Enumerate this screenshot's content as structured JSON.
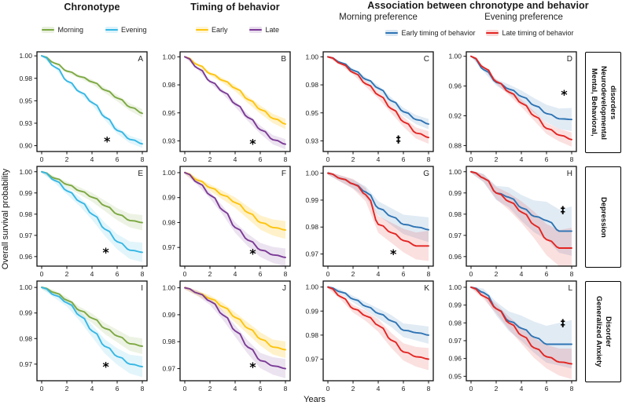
{
  "header": {
    "col1": "Chronotype",
    "col2": "Timing of behavior",
    "col34": "Association between chronotype  and behavior",
    "sub_col3": "Morning preference",
    "sub_col4": "Evening preference"
  },
  "ylabel": "Overall survival probability",
  "xlabel": "Years",
  "legends": {
    "chronotype": [
      {
        "label": "Morning",
        "color": "#7ca842"
      },
      {
        "label": "Evening",
        "color": "#35b7e5"
      }
    ],
    "timing": [
      {
        "label": "Early",
        "color": "#fdc40f"
      },
      {
        "label": "Late",
        "color": "#7b3a96"
      }
    ],
    "association": [
      {
        "label": "Early timing of behavior",
        "color": "#2e74b4"
      },
      {
        "label": "Late timing of behavior",
        "color": "#e32522"
      }
    ]
  },
  "row_labels": [
    {
      "lines": [
        "Mental, Behavioral,",
        "Neurodevelopmental",
        "disorders"
      ]
    },
    {
      "lines": [
        "Depression"
      ]
    },
    {
      "lines": [
        "Generalized Anxiety",
        "Disorder"
      ]
    }
  ],
  "chart_data": {
    "type": "line",
    "subtype": "kaplan-meier-survival-grid",
    "xlabel": "Years",
    "ylabel": "Overall survival probability",
    "x": [
      0,
      1,
      2,
      3,
      4,
      5,
      6,
      7,
      8
    ],
    "x_ticks": [
      0,
      2,
      4,
      6,
      8
    ],
    "panels": [
      {
        "id": "A",
        "row": 0,
        "col": 0,
        "ylim": [
          0.8935,
          1.0045
        ],
        "yticks": [
          {
            "v": 1.0,
            "label": "1.00"
          },
          {
            "v": 0.975,
            "label": "0.98"
          },
          {
            "v": 0.95,
            "label": "0.95"
          },
          {
            "v": 0.925,
            "label": "0.93"
          },
          {
            "v": 0.9,
            "label": "0.90"
          }
        ],
        "series": [
          {
            "name": "Morning",
            "color": "#7ca842",
            "band": 0.004,
            "values": [
              1.0,
              0.992,
              0.983,
              0.977,
              0.971,
              0.962,
              0.953,
              0.943,
              0.936
            ]
          },
          {
            "name": "Evening",
            "color": "#35b7e5",
            "band": 0.004,
            "values": [
              1.0,
              0.988,
              0.972,
              0.96,
              0.948,
              0.932,
              0.917,
              0.907,
              0.902
            ]
          }
        ],
        "symbol": {
          "glyph": "*",
          "x": 5.2,
          "y": 0.906
        }
      },
      {
        "id": "B",
        "row": 0,
        "col": 1,
        "ylim": [
          0.9155,
          1.0045
        ],
        "yticks": [
          {
            "v": 1.0,
            "label": "1.00"
          },
          {
            "v": 0.975,
            "label": "0.98"
          },
          {
            "v": 0.95,
            "label": "0.95"
          },
          {
            "v": 0.925,
            "label": "0.93"
          }
        ],
        "series": [
          {
            "name": "Early",
            "color": "#fdc40f",
            "band": 0.004,
            "values": [
              1.0,
              0.993,
              0.985,
              0.979,
              0.972,
              0.962,
              0.953,
              0.945,
              0.94
            ]
          },
          {
            "name": "Late",
            "color": "#7b3a96",
            "band": 0.004,
            "values": [
              1.0,
              0.99,
              0.978,
              0.969,
              0.958,
              0.946,
              0.935,
              0.926,
              0.922
            ]
          }
        ],
        "symbol": {
          "glyph": "*",
          "x": 5.4,
          "y": 0.9235
        }
      },
      {
        "id": "C",
        "row": 0,
        "col": 2,
        "ylim": [
          0.9155,
          1.0045
        ],
        "yticks": [
          {
            "v": 1.0,
            "label": "1.00"
          },
          {
            "v": 0.975,
            "label": "0.98"
          },
          {
            "v": 0.95,
            "label": "0.95"
          },
          {
            "v": 0.925,
            "label": "0.93"
          }
        ],
        "series": [
          {
            "name": "Early timing of behavior",
            "color": "#2e74b4",
            "band": 0.004,
            "values": [
              1.0,
              0.995,
              0.988,
              0.98,
              0.972,
              0.961,
              0.951,
              0.944,
              0.94
            ]
          },
          {
            "name": "Late timing of behavior",
            "color": "#e32522",
            "band": 0.005,
            "values": [
              1.0,
              0.994,
              0.986,
              0.976,
              0.966,
              0.954,
              0.942,
              0.932,
              0.928
            ]
          }
        ],
        "symbol": {
          "glyph": "‡",
          "x": 5.6,
          "y": 0.9265
        }
      },
      {
        "id": "D",
        "row": 0,
        "col": 3,
        "ylim": [
          0.872,
          1.006
        ],
        "yticks": [
          {
            "v": 1.0,
            "label": "1.00"
          },
          {
            "v": 0.96,
            "label": "0.96"
          },
          {
            "v": 0.92,
            "label": "0.92"
          },
          {
            "v": 0.88,
            "label": "0.88"
          }
        ],
        "series": [
          {
            "name": "Early timing of behavior",
            "color": "#2e74b4",
            "band": 0.015,
            "values": [
              1.0,
              0.982,
              0.965,
              0.956,
              0.946,
              0.934,
              0.923,
              0.916,
              0.915
            ]
          },
          {
            "name": "Late timing of behavior",
            "color": "#e32522",
            "band": 0.009,
            "values": [
              1.0,
              0.985,
              0.966,
              0.952,
              0.937,
              0.92,
              0.903,
              0.894,
              0.888
            ]
          }
        ],
        "symbol": {
          "glyph": "*",
          "x": 7.4,
          "y": 0.95
        }
      },
      {
        "id": "E",
        "row": 1,
        "col": 0,
        "ylim": [
          0.9555,
          1.0025
        ],
        "yticks": [
          {
            "v": 1.0,
            "label": "1.00"
          },
          {
            "v": 0.99,
            "label": "0.99"
          },
          {
            "v": 0.98,
            "label": "0.98"
          },
          {
            "v": 0.97,
            "label": "0.97"
          },
          {
            "v": 0.96,
            "label": "0.96"
          }
        ],
        "series": [
          {
            "name": "Morning",
            "color": "#7ca842",
            "band": 0.003,
            "values": [
              1.0,
              0.997,
              0.994,
              0.991,
              0.988,
              0.984,
              0.98,
              0.977,
              0.976
            ]
          },
          {
            "name": "Evening",
            "color": "#35b7e5",
            "band": 0.004,
            "values": [
              1.0,
              0.996,
              0.991,
              0.986,
              0.98,
              0.973,
              0.967,
              0.963,
              0.962
            ]
          }
        ],
        "symbol": {
          "glyph": "*",
          "x": 5.1,
          "y": 0.9625
        }
      },
      {
        "id": "F",
        "row": 1,
        "col": 1,
        "ylim": [
          0.9625,
          1.0025
        ],
        "yticks": [
          {
            "v": 1.0,
            "label": "1.00"
          },
          {
            "v": 0.99,
            "label": "0.99"
          },
          {
            "v": 0.98,
            "label": "0.98"
          },
          {
            "v": 0.97,
            "label": "0.97"
          }
        ],
        "series": [
          {
            "name": "Early",
            "color": "#fdc40f",
            "band": 0.003,
            "values": [
              1.0,
              0.997,
              0.994,
              0.991,
              0.988,
              0.984,
              0.98,
              0.978,
              0.977
            ]
          },
          {
            "name": "Late",
            "color": "#7b3a96",
            "band": 0.003,
            "values": [
              1.0,
              0.996,
              0.991,
              0.985,
              0.978,
              0.973,
              0.969,
              0.967,
              0.966
            ]
          }
        ],
        "symbol": {
          "glyph": "*",
          "x": 5.4,
          "y": 0.968
        }
      },
      {
        "id": "G",
        "row": 1,
        "col": 2,
        "ylim": [
          0.9655,
          1.0025
        ],
        "yticks": [
          {
            "v": 1.0,
            "label": "1.00"
          },
          {
            "v": 0.99,
            "label": "0.99"
          },
          {
            "v": 0.98,
            "label": "0.98"
          },
          {
            "v": 0.97,
            "label": "0.97"
          }
        ],
        "series": [
          {
            "name": "Early timing of behavior",
            "color": "#2e74b4",
            "band": 0.004,
            "values": [
              1.0,
              0.998,
              0.996,
              0.993,
              0.987,
              0.984,
              0.981,
              0.98,
              0.979
            ]
          },
          {
            "name": "Late timing of behavior",
            "color": "#e32522",
            "band": 0.005,
            "values": [
              1.0,
              0.998,
              0.996,
              0.992,
              0.981,
              0.978,
              0.975,
              0.973,
              0.973
            ]
          }
        ],
        "symbol": {
          "glyph": "*",
          "x": 5.2,
          "y": 0.9705
        }
      },
      {
        "id": "H",
        "row": 1,
        "col": 3,
        "ylim": [
          0.9555,
          1.0025
        ],
        "yticks": [
          {
            "v": 1.0,
            "label": "1.00"
          },
          {
            "v": 0.99,
            "label": "0.99"
          },
          {
            "v": 0.98,
            "label": "0.98"
          },
          {
            "v": 0.97,
            "label": "0.97"
          },
          {
            "v": 0.96,
            "label": "0.96"
          }
        ],
        "series": [
          {
            "name": "Early timing of behavior",
            "color": "#2e74b4",
            "band": 0.011,
            "values": [
              1.0,
              0.997,
              0.99,
              0.988,
              0.983,
              0.979,
              0.977,
              0.972,
              0.972
            ]
          },
          {
            "name": "Late timing of behavior",
            "color": "#e32522",
            "band": 0.009,
            "values": [
              1.0,
              0.997,
              0.99,
              0.986,
              0.981,
              0.975,
              0.968,
              0.964,
              0.964
            ]
          }
        ],
        "symbol": {
          "glyph": "‡",
          "x": 7.3,
          "y": 0.982
        }
      },
      {
        "id": "I",
        "row": 2,
        "col": 0,
        "ylim": [
          0.9635,
          1.0025
        ],
        "yticks": [
          {
            "v": 1.0,
            "label": "1.00"
          },
          {
            "v": 0.99,
            "label": "0.99"
          },
          {
            "v": 0.98,
            "label": "0.98"
          },
          {
            "v": 0.97,
            "label": "0.97"
          }
        ],
        "series": [
          {
            "name": "Morning",
            "color": "#7ca842",
            "band": 0.0025,
            "values": [
              1.0,
              0.998,
              0.995,
              0.991,
              0.988,
              0.984,
              0.981,
              0.978,
              0.977
            ]
          },
          {
            "name": "Evening",
            "color": "#35b7e5",
            "band": 0.0035,
            "values": [
              1.0,
              0.997,
              0.994,
              0.989,
              0.983,
              0.977,
              0.973,
              0.97,
              0.969
            ]
          }
        ],
        "symbol": {
          "glyph": "*",
          "x": 5.1,
          "y": 0.9695
        }
      },
      {
        "id": "J",
        "row": 2,
        "col": 1,
        "ylim": [
          0.9655,
          1.0025
        ],
        "yticks": [
          {
            "v": 1.0,
            "label": "1.00"
          },
          {
            "v": 0.99,
            "label": "0.99"
          },
          {
            "v": 0.98,
            "label": "0.98"
          },
          {
            "v": 0.97,
            "label": "0.97"
          }
        ],
        "series": [
          {
            "name": "Early",
            "color": "#fdc40f",
            "band": 0.0025,
            "values": [
              1.0,
              0.998,
              0.996,
              0.993,
              0.989,
              0.985,
              0.981,
              0.978,
              0.977
            ]
          },
          {
            "name": "Late",
            "color": "#7b3a96",
            "band": 0.003,
            "values": [
              1.0,
              0.998,
              0.995,
              0.99,
              0.984,
              0.978,
              0.973,
              0.971,
              0.97
            ]
          }
        ],
        "symbol": {
          "glyph": "*",
          "x": 5.4,
          "y": 0.971
        }
      },
      {
        "id": "K",
        "row": 2,
        "col": 2,
        "ylim": [
          0.961,
          1.0025
        ],
        "yticks": [
          {
            "v": 1.0,
            "label": "1.00"
          },
          {
            "v": 0.99,
            "label": "0.99"
          },
          {
            "v": 0.98,
            "label": "0.98"
          },
          {
            "v": 0.97,
            "label": "0.97"
          }
        ],
        "series": [
          {
            "name": "Early timing of behavior",
            "color": "#2e74b4",
            "band": 0.003,
            "values": [
              1.0,
              0.998,
              0.995,
              0.992,
              0.989,
              0.986,
              0.982,
              0.981,
              0.98
            ]
          },
          {
            "name": "Late timing of behavior",
            "color": "#e32522",
            "band": 0.004,
            "values": [
              1.0,
              0.996,
              0.991,
              0.988,
              0.984,
              0.978,
              0.973,
              0.971,
              0.97
            ]
          }
        ],
        "symbol": null
      },
      {
        "id": "L",
        "row": 2,
        "col": 3,
        "ylim": [
          0.9475,
          1.0035
        ],
        "yticks": [
          {
            "v": 1.0,
            "label": "1.00"
          },
          {
            "v": 0.99,
            "label": "0.99"
          },
          {
            "v": 0.98,
            "label": "0.98"
          },
          {
            "v": 0.97,
            "label": "0.97"
          },
          {
            "v": 0.96,
            "label": "0.96"
          },
          {
            "v": 0.95,
            "label": "0.95"
          }
        ],
        "series": [
          {
            "name": "Early timing of behavior",
            "color": "#2e74b4",
            "band": 0.013,
            "values": [
              1.0,
              0.997,
              0.988,
              0.981,
              0.977,
              0.972,
              0.968,
              0.968,
              0.968
            ]
          },
          {
            "name": "Late timing of behavior",
            "color": "#e32522",
            "band": 0.008,
            "values": [
              1.0,
              0.995,
              0.988,
              0.98,
              0.973,
              0.966,
              0.961,
              0.958,
              0.957
            ]
          }
        ],
        "symbol": {
          "glyph": "‡",
          "x": 7.3,
          "y": 0.98
        }
      }
    ]
  }
}
